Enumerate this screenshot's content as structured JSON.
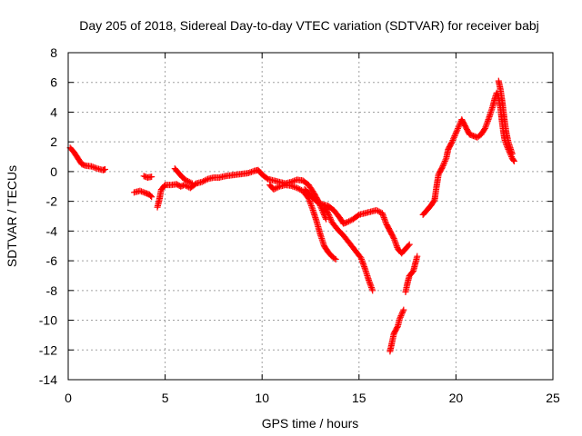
{
  "chart_data": {
    "type": "scatter",
    "title": "Day 205 of 2018, Sidereal Day-to-day VTEC variation (SDTVAR) for receiver babj",
    "xlabel": "GPS time / hours",
    "ylabel": "SDTVAR / TECUs",
    "xlim": [
      0,
      25
    ],
    "ylim": [
      -14,
      8
    ],
    "xticks": [
      0,
      5,
      10,
      15,
      20,
      25
    ],
    "yticks": [
      -14,
      -12,
      -10,
      -8,
      -6,
      -4,
      -2,
      0,
      2,
      4,
      6,
      8
    ],
    "grid": true,
    "marker": "+",
    "color": "#ff0000",
    "segments": [
      {
        "name": "seg1",
        "points": [
          [
            0.1,
            1.6
          ],
          [
            0.3,
            1.3
          ],
          [
            0.5,
            0.9
          ],
          [
            0.7,
            0.5
          ],
          [
            0.9,
            0.4
          ],
          [
            1.2,
            0.35
          ],
          [
            1.5,
            0.2
          ],
          [
            1.8,
            0.1
          ],
          [
            1.9,
            0.15
          ]
        ]
      },
      {
        "name": "seg2",
        "points": [
          [
            3.4,
            -1.4
          ],
          [
            3.7,
            -1.3
          ],
          [
            4.0,
            -1.45
          ],
          [
            4.2,
            -1.55
          ],
          [
            4.3,
            -1.7
          ]
        ]
      },
      {
        "name": "seg3",
        "points": [
          [
            3.9,
            -0.3
          ],
          [
            4.1,
            -0.4
          ],
          [
            4.3,
            -0.35
          ]
        ]
      },
      {
        "name": "seg4",
        "points": [
          [
            4.6,
            -2.4
          ],
          [
            4.7,
            -1.9
          ],
          [
            4.8,
            -1.2
          ],
          [
            5.0,
            -0.9
          ],
          [
            5.3,
            -0.9
          ],
          [
            5.6,
            -0.85
          ],
          [
            5.8,
            -1.0
          ],
          [
            6.0,
            -0.9
          ],
          [
            6.3,
            -1.1
          ],
          [
            6.6,
            -0.8
          ],
          [
            6.9,
            -0.7
          ],
          [
            7.2,
            -0.5
          ],
          [
            7.5,
            -0.4
          ],
          [
            7.8,
            -0.4
          ],
          [
            8.1,
            -0.3
          ],
          [
            8.4,
            -0.25
          ],
          [
            8.7,
            -0.2
          ],
          [
            9.0,
            -0.15
          ],
          [
            9.3,
            -0.1
          ],
          [
            9.6,
            0.05
          ],
          [
            9.8,
            0.1
          ],
          [
            10.0,
            -0.2
          ],
          [
            10.3,
            -0.5
          ],
          [
            10.6,
            -0.6
          ],
          [
            10.9,
            -0.7
          ],
          [
            11.2,
            -0.8
          ],
          [
            11.5,
            -0.7
          ],
          [
            11.8,
            -0.55
          ],
          [
            12.1,
            -0.6
          ],
          [
            12.4,
            -0.9
          ],
          [
            12.7,
            -1.5
          ],
          [
            12.9,
            -2.0
          ],
          [
            13.1,
            -2.6
          ],
          [
            13.3,
            -3.2
          ]
        ]
      },
      {
        "name": "seg5",
        "points": [
          [
            5.5,
            0.2
          ],
          [
            5.7,
            -0.1
          ],
          [
            5.9,
            -0.4
          ],
          [
            6.1,
            -0.6
          ],
          [
            6.4,
            -0.8
          ]
        ]
      },
      {
        "name": "seg6",
        "points": [
          [
            10.4,
            -0.9
          ],
          [
            10.6,
            -1.2
          ],
          [
            10.9,
            -1.0
          ],
          [
            11.2,
            -0.9
          ],
          [
            11.5,
            -0.95
          ],
          [
            11.8,
            -1.1
          ],
          [
            12.1,
            -1.3
          ],
          [
            12.4,
            -1.8
          ],
          [
            12.6,
            -2.5
          ],
          [
            12.8,
            -3.3
          ],
          [
            13.0,
            -4.2
          ],
          [
            13.2,
            -5.0
          ],
          [
            13.4,
            -5.4
          ],
          [
            13.6,
            -5.7
          ],
          [
            13.8,
            -5.9
          ]
        ]
      },
      {
        "name": "seg7",
        "points": [
          [
            12.2,
            -1.2
          ],
          [
            12.5,
            -1.6
          ],
          [
            12.8,
            -2.0
          ],
          [
            13.1,
            -2.2
          ],
          [
            13.4,
            -2.3
          ],
          [
            13.7,
            -2.6
          ],
          [
            14.0,
            -3.1
          ],
          [
            14.2,
            -3.5
          ],
          [
            14.4,
            -3.4
          ],
          [
            14.7,
            -3.2
          ],
          [
            15.0,
            -2.9
          ],
          [
            15.3,
            -2.8
          ],
          [
            15.6,
            -2.7
          ],
          [
            15.9,
            -2.6
          ],
          [
            16.2,
            -2.8
          ],
          [
            16.4,
            -3.5
          ],
          [
            16.6,
            -4.0
          ],
          [
            16.8,
            -4.5
          ],
          [
            17.0,
            -5.2
          ],
          [
            17.2,
            -5.5
          ],
          [
            17.4,
            -5.2
          ],
          [
            17.6,
            -4.9
          ]
        ]
      },
      {
        "name": "seg8",
        "points": [
          [
            13.2,
            -2.3
          ],
          [
            13.4,
            -2.8
          ],
          [
            13.6,
            -3.4
          ],
          [
            13.9,
            -3.9
          ],
          [
            14.2,
            -4.3
          ],
          [
            14.5,
            -4.8
          ],
          [
            14.8,
            -5.3
          ],
          [
            15.1,
            -5.8
          ],
          [
            15.3,
            -6.5
          ],
          [
            15.5,
            -7.3
          ],
          [
            15.7,
            -8.0
          ]
        ]
      },
      {
        "name": "seg9",
        "points": [
          [
            16.6,
            -12.1
          ],
          [
            16.7,
            -11.5
          ],
          [
            16.8,
            -10.9
          ],
          [
            17.0,
            -10.4
          ],
          [
            17.1,
            -9.9
          ],
          [
            17.3,
            -9.3
          ]
        ]
      },
      {
        "name": "seg10",
        "points": [
          [
            17.4,
            -8.1
          ],
          [
            17.5,
            -7.5
          ],
          [
            17.6,
            -7.0
          ],
          [
            17.8,
            -6.7
          ],
          [
            17.9,
            -6.2
          ],
          [
            18.0,
            -5.7
          ]
        ]
      },
      {
        "name": "seg11",
        "points": [
          [
            18.3,
            -2.9
          ],
          [
            18.5,
            -2.6
          ],
          [
            18.7,
            -2.3
          ],
          [
            18.9,
            -1.9
          ],
          [
            19.0,
            -1.0
          ],
          [
            19.1,
            -0.2
          ],
          [
            19.3,
            0.3
          ],
          [
            19.5,
            0.9
          ],
          [
            19.6,
            1.5
          ],
          [
            19.8,
            2.0
          ],
          [
            20.0,
            2.6
          ],
          [
            20.2,
            3.2
          ],
          [
            20.3,
            3.5
          ],
          [
            20.5,
            3.0
          ],
          [
            20.7,
            2.5
          ],
          [
            20.9,
            2.4
          ],
          [
            21.1,
            2.3
          ],
          [
            21.3,
            2.5
          ],
          [
            21.5,
            2.9
          ],
          [
            21.7,
            3.6
          ],
          [
            21.9,
            4.4
          ],
          [
            22.0,
            4.9
          ],
          [
            22.1,
            5.3
          ],
          [
            22.2,
            5.0
          ],
          [
            22.3,
            4.2
          ],
          [
            22.4,
            3.1
          ],
          [
            22.5,
            2.2
          ],
          [
            22.6,
            1.8
          ],
          [
            22.7,
            1.5
          ],
          [
            22.8,
            1.2
          ],
          [
            22.9,
            0.9
          ],
          [
            23.0,
            0.7
          ]
        ]
      },
      {
        "name": "seg12",
        "points": [
          [
            22.2,
            6.1
          ],
          [
            22.3,
            5.5
          ],
          [
            22.4,
            4.6
          ],
          [
            22.5,
            3.5
          ],
          [
            22.6,
            2.6
          ],
          [
            22.7,
            2.0
          ],
          [
            22.8,
            1.6
          ],
          [
            22.9,
            1.2
          ]
        ]
      }
    ]
  }
}
